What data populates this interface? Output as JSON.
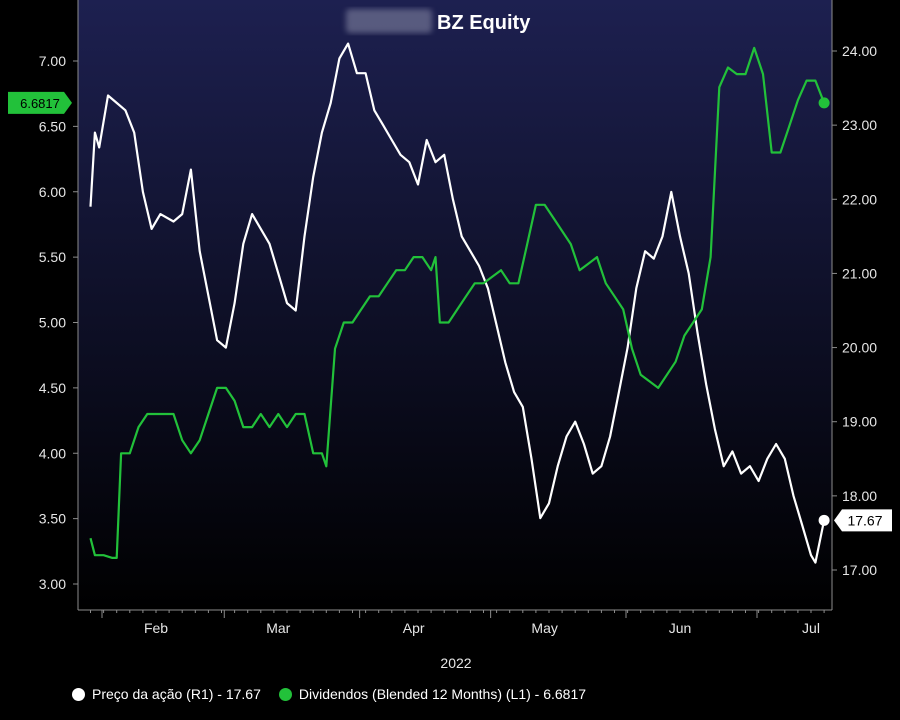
{
  "colors": {
    "background": "#000000",
    "plot_top": "#1d2050",
    "plot_bottom": "#000000",
    "price_line": "#ffffff",
    "dividend_line": "#22c13a",
    "axis_text": "#e6e6e6"
  },
  "chart_data": {
    "type": "line",
    "title": "BZ Equity",
    "title_prefix_redacted": true,
    "xlabel": "2022",
    "x_tick_labels": [
      "Feb",
      "Mar",
      "Apr",
      "May",
      "Jun",
      "Jul"
    ],
    "x_range": [
      "2022-01-17",
      "2022-07-06"
    ],
    "left_axis": {
      "ticks": [
        "3.00",
        "3.50",
        "4.00",
        "4.50",
        "5.00",
        "5.50",
        "6.00",
        "6.50",
        "7.00"
      ],
      "range": [
        2.8,
        7.4
      ]
    },
    "right_axis": {
      "ticks": [
        "17.00",
        "18.00",
        "19.00",
        "20.00",
        "21.00",
        "22.00",
        "23.00",
        "24.00"
      ],
      "range": [
        16.6,
        24.7
      ]
    },
    "grid": false,
    "legend_position": "bottom-left",
    "series": [
      {
        "name": "Preço da ação (R1) - 17.67",
        "axis": "right",
        "color": "#ffffff",
        "last_value_label": "17.67",
        "points": [
          [
            "2022-01-17",
            21.9
          ],
          [
            "2022-01-18",
            22.9
          ],
          [
            "2022-01-19",
            22.7
          ],
          [
            "2022-01-21",
            23.4
          ],
          [
            "2022-01-23",
            23.3
          ],
          [
            "2022-01-25",
            23.2
          ],
          [
            "2022-01-27",
            22.9
          ],
          [
            "2022-01-29",
            22.1
          ],
          [
            "2022-01-31",
            21.6
          ],
          [
            "2022-02-02",
            21.8
          ],
          [
            "2022-02-05",
            21.7
          ],
          [
            "2022-02-07",
            21.8
          ],
          [
            "2022-02-09",
            22.4
          ],
          [
            "2022-02-11",
            21.3
          ],
          [
            "2022-02-13",
            20.7
          ],
          [
            "2022-02-15",
            20.1
          ],
          [
            "2022-02-17",
            20.0
          ],
          [
            "2022-02-19",
            20.6
          ],
          [
            "2022-02-21",
            21.4
          ],
          [
            "2022-02-23",
            21.8
          ],
          [
            "2022-02-25",
            21.6
          ],
          [
            "2022-02-27",
            21.4
          ],
          [
            "2022-03-01",
            21.0
          ],
          [
            "2022-03-03",
            20.6
          ],
          [
            "2022-03-05",
            20.5
          ],
          [
            "2022-03-07",
            21.5
          ],
          [
            "2022-03-09",
            22.3
          ],
          [
            "2022-03-11",
            22.9
          ],
          [
            "2022-03-13",
            23.3
          ],
          [
            "2022-03-15",
            23.9
          ],
          [
            "2022-03-17",
            24.1
          ],
          [
            "2022-03-19",
            23.7
          ],
          [
            "2022-03-21",
            23.7
          ],
          [
            "2022-03-23",
            23.2
          ],
          [
            "2022-03-25",
            23.0
          ],
          [
            "2022-03-27",
            22.8
          ],
          [
            "2022-03-29",
            22.6
          ],
          [
            "2022-03-31",
            22.5
          ],
          [
            "2022-04-02",
            22.2
          ],
          [
            "2022-04-04",
            22.8
          ],
          [
            "2022-04-06",
            22.5
          ],
          [
            "2022-04-08",
            22.6
          ],
          [
            "2022-04-10",
            22.0
          ],
          [
            "2022-04-12",
            21.5
          ],
          [
            "2022-04-14",
            21.3
          ],
          [
            "2022-04-16",
            21.1
          ],
          [
            "2022-04-18",
            20.8
          ],
          [
            "2022-04-20",
            20.3
          ],
          [
            "2022-04-22",
            19.8
          ],
          [
            "2022-04-24",
            19.4
          ],
          [
            "2022-04-26",
            19.2
          ],
          [
            "2022-04-28",
            18.5
          ],
          [
            "2022-04-30",
            17.7
          ],
          [
            "2022-05-02",
            17.9
          ],
          [
            "2022-05-04",
            18.4
          ],
          [
            "2022-05-06",
            18.8
          ],
          [
            "2022-05-08",
            19.0
          ],
          [
            "2022-05-10",
            18.7
          ],
          [
            "2022-05-12",
            18.3
          ],
          [
            "2022-05-14",
            18.4
          ],
          [
            "2022-05-16",
            18.8
          ],
          [
            "2022-05-18",
            19.4
          ],
          [
            "2022-05-20",
            20.0
          ],
          [
            "2022-05-22",
            20.8
          ],
          [
            "2022-05-24",
            21.3
          ],
          [
            "2022-05-26",
            21.2
          ],
          [
            "2022-05-28",
            21.5
          ],
          [
            "2022-05-30",
            22.1
          ],
          [
            "2022-06-01",
            21.5
          ],
          [
            "2022-06-03",
            21.0
          ],
          [
            "2022-06-05",
            20.2
          ],
          [
            "2022-06-07",
            19.5
          ],
          [
            "2022-06-09",
            18.9
          ],
          [
            "2022-06-11",
            18.4
          ],
          [
            "2022-06-13",
            18.6
          ],
          [
            "2022-06-15",
            18.3
          ],
          [
            "2022-06-17",
            18.4
          ],
          [
            "2022-06-19",
            18.2
          ],
          [
            "2022-06-21",
            18.5
          ],
          [
            "2022-06-23",
            18.7
          ],
          [
            "2022-06-25",
            18.5
          ],
          [
            "2022-06-27",
            18.0
          ],
          [
            "2022-06-29",
            17.6
          ],
          [
            "2022-07-01",
            17.2
          ],
          [
            "2022-07-02",
            17.1
          ],
          [
            "2022-07-04",
            17.67
          ]
        ]
      },
      {
        "name": "Dividendos (Blended 12 Months) (L1) - 6.6817",
        "axis": "left",
        "color": "#22c13a",
        "last_value_label": "6.6817",
        "points": [
          [
            "2022-01-17",
            3.35
          ],
          [
            "2022-01-18",
            3.22
          ],
          [
            "2022-01-20",
            3.22
          ],
          [
            "2022-01-22",
            3.2
          ],
          [
            "2022-01-23",
            3.2
          ],
          [
            "2022-01-24",
            4.0
          ],
          [
            "2022-01-26",
            4.0
          ],
          [
            "2022-01-28",
            4.2
          ],
          [
            "2022-01-30",
            4.3
          ],
          [
            "2022-02-01",
            4.3
          ],
          [
            "2022-02-03",
            4.3
          ],
          [
            "2022-02-05",
            4.3
          ],
          [
            "2022-02-07",
            4.1
          ],
          [
            "2022-02-09",
            4.0
          ],
          [
            "2022-02-11",
            4.1
          ],
          [
            "2022-02-13",
            4.3
          ],
          [
            "2022-02-15",
            4.5
          ],
          [
            "2022-02-17",
            4.5
          ],
          [
            "2022-02-19",
            4.4
          ],
          [
            "2022-02-21",
            4.2
          ],
          [
            "2022-02-23",
            4.2
          ],
          [
            "2022-02-25",
            4.3
          ],
          [
            "2022-02-27",
            4.2
          ],
          [
            "2022-03-01",
            4.3
          ],
          [
            "2022-03-03",
            4.2
          ],
          [
            "2022-03-05",
            4.3
          ],
          [
            "2022-03-07",
            4.3
          ],
          [
            "2022-03-09",
            4.0
          ],
          [
            "2022-03-11",
            4.0
          ],
          [
            "2022-03-12",
            3.9
          ],
          [
            "2022-03-14",
            4.8
          ],
          [
            "2022-03-16",
            5.0
          ],
          [
            "2022-03-18",
            5.0
          ],
          [
            "2022-03-20",
            5.1
          ],
          [
            "2022-03-22",
            5.2
          ],
          [
            "2022-03-24",
            5.2
          ],
          [
            "2022-03-26",
            5.3
          ],
          [
            "2022-03-28",
            5.4
          ],
          [
            "2022-03-30",
            5.4
          ],
          [
            "2022-04-01",
            5.5
          ],
          [
            "2022-04-03",
            5.5
          ],
          [
            "2022-04-05",
            5.4
          ],
          [
            "2022-04-06",
            5.5
          ],
          [
            "2022-04-07",
            5.0
          ],
          [
            "2022-04-09",
            5.0
          ],
          [
            "2022-04-11",
            5.1
          ],
          [
            "2022-04-13",
            5.2
          ],
          [
            "2022-04-15",
            5.3
          ],
          [
            "2022-04-17",
            5.3
          ],
          [
            "2022-04-19",
            5.35
          ],
          [
            "2022-04-21",
            5.4
          ],
          [
            "2022-04-23",
            5.3
          ],
          [
            "2022-04-25",
            5.3
          ],
          [
            "2022-04-27",
            5.6
          ],
          [
            "2022-04-29",
            5.9
          ],
          [
            "2022-05-01",
            5.9
          ],
          [
            "2022-05-03",
            5.8
          ],
          [
            "2022-05-05",
            5.7
          ],
          [
            "2022-05-07",
            5.6
          ],
          [
            "2022-05-09",
            5.4
          ],
          [
            "2022-05-11",
            5.45
          ],
          [
            "2022-05-13",
            5.5
          ],
          [
            "2022-05-15",
            5.3
          ],
          [
            "2022-05-17",
            5.2
          ],
          [
            "2022-05-19",
            5.1
          ],
          [
            "2022-05-21",
            4.8
          ],
          [
            "2022-05-23",
            4.6
          ],
          [
            "2022-05-25",
            4.55
          ],
          [
            "2022-05-27",
            4.5
          ],
          [
            "2022-05-29",
            4.6
          ],
          [
            "2022-05-31",
            4.7
          ],
          [
            "2022-06-02",
            4.9
          ],
          [
            "2022-06-04",
            5.0
          ],
          [
            "2022-06-06",
            5.1
          ],
          [
            "2022-06-08",
            5.5
          ],
          [
            "2022-06-10",
            6.8
          ],
          [
            "2022-06-12",
            6.95
          ],
          [
            "2022-06-14",
            6.9
          ],
          [
            "2022-06-16",
            6.9
          ],
          [
            "2022-06-18",
            7.1
          ],
          [
            "2022-06-20",
            6.9
          ],
          [
            "2022-06-22",
            6.3
          ],
          [
            "2022-06-24",
            6.3
          ],
          [
            "2022-06-26",
            6.5
          ],
          [
            "2022-06-28",
            6.7
          ],
          [
            "2022-06-30",
            6.85
          ],
          [
            "2022-07-02",
            6.85
          ],
          [
            "2022-07-04",
            6.68
          ]
        ]
      }
    ]
  },
  "legend": [
    {
      "label": "Preço da ação (R1) - 17.67",
      "color": "#ffffff"
    },
    {
      "label": "Dividendos (Blended 12 Months) (L1) - 6.6817",
      "color": "#22c13a"
    }
  ]
}
